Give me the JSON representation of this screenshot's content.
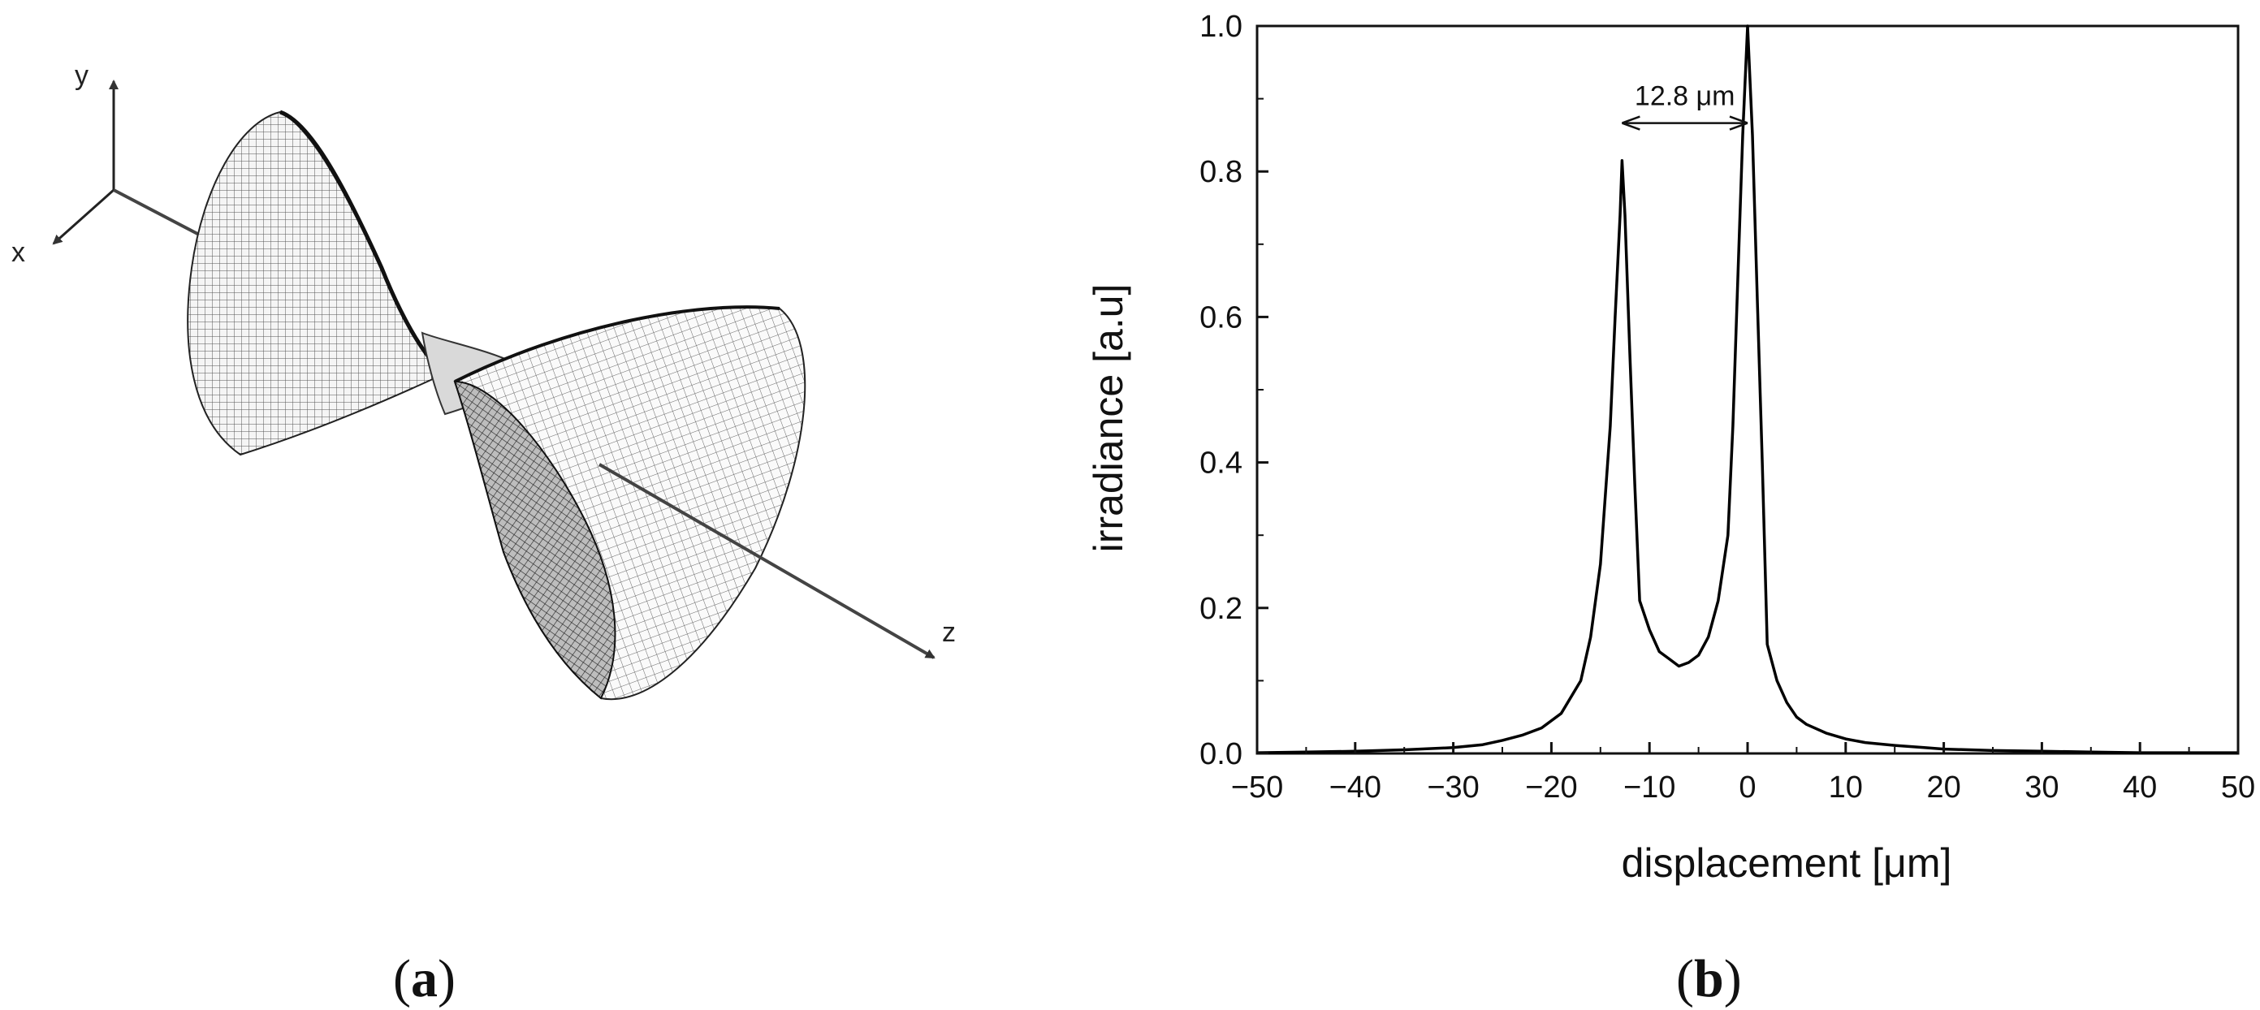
{
  "panels": {
    "a": {
      "label_open": "(",
      "label_letter": "a",
      "label_close": ")",
      "axes": {
        "x": "x",
        "y": "y",
        "z": "z"
      }
    },
    "b": {
      "label_open": "(",
      "label_letter": "b",
      "label_close": ")"
    }
  },
  "chart_data": {
    "type": "line",
    "xlabel": "displacement [μm]",
    "ylabel": "irradiance [a.u]",
    "xlim": [
      -50,
      50
    ],
    "ylim": [
      0,
      1.0
    ],
    "x_ticks": [
      -50,
      -40,
      -30,
      -20,
      -10,
      0,
      10,
      20,
      30,
      40,
      50
    ],
    "x_tick_labels": [
      "−50",
      "−40",
      "−30",
      "−20",
      "−10",
      "0",
      "10",
      "20",
      "30",
      "40",
      "50"
    ],
    "y_ticks": [
      0.0,
      0.2,
      0.4,
      0.6,
      0.8,
      1.0
    ],
    "y_tick_labels": [
      "0.0",
      "0.2",
      "0.4",
      "0.6",
      "0.8",
      "1.0"
    ],
    "grid": false,
    "line_color": "#000000",
    "annotation": {
      "text": "12.8 μm",
      "from_x": -12.8,
      "to_x": 0,
      "y": 0.9
    },
    "series": [
      {
        "x": [
          -50,
          -45,
          -40,
          -35,
          -30,
          -27,
          -25,
          -23,
          -21,
          -19,
          -17,
          -16,
          -15,
          -14,
          -13.5,
          -13,
          -12.8,
          -12.5,
          -12,
          -11.5,
          -11,
          -10,
          -9,
          -8,
          -7,
          -6,
          -5,
          -4,
          -3,
          -2,
          -1.5,
          -1,
          -0.5,
          0,
          0.5,
          1,
          1.5,
          2,
          3,
          4,
          5,
          6,
          8,
          10,
          12,
          15,
          18,
          20,
          25,
          30,
          35,
          40,
          45,
          50
        ],
        "y": [
          0.001,
          0.002,
          0.003,
          0.005,
          0.008,
          0.012,
          0.018,
          0.025,
          0.035,
          0.055,
          0.1,
          0.16,
          0.26,
          0.45,
          0.6,
          0.74,
          0.815,
          0.74,
          0.55,
          0.37,
          0.21,
          0.17,
          0.14,
          0.13,
          0.12,
          0.125,
          0.135,
          0.16,
          0.21,
          0.3,
          0.45,
          0.65,
          0.85,
          1.0,
          0.85,
          0.62,
          0.4,
          0.15,
          0.1,
          0.07,
          0.05,
          0.04,
          0.028,
          0.02,
          0.015,
          0.011,
          0.008,
          0.006,
          0.004,
          0.003,
          0.002,
          0.001,
          0.001,
          0.001
        ]
      }
    ]
  }
}
